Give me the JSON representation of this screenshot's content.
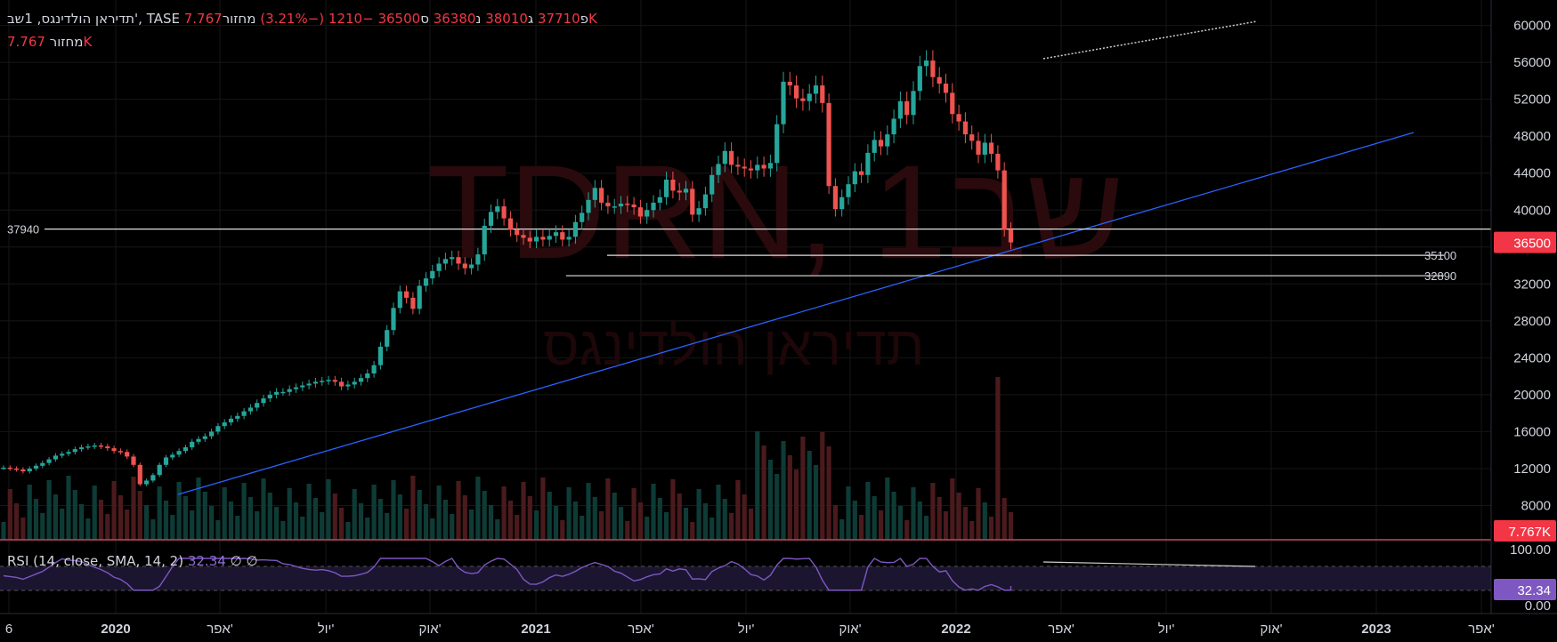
{
  "header": {
    "symbol": "תדיראן הולדינגס, 1שב', TASE",
    "open_label": "פ",
    "open": "37710",
    "high_label": "ג",
    "high": "38010",
    "low_label": "נ",
    "low": "36380",
    "close_label": "ס",
    "close": "36500",
    "change": "−1210 (−3.21%)",
    "volume_label": "מחזור",
    "volume": "7.767K"
  },
  "volume_row": {
    "label": "מחזור",
    "value": "7.767K"
  },
  "watermark": {
    "ticker": "TDRN, 1שב",
    "name": "תדיראן הולדינגס"
  },
  "price_tags": {
    "last": "36500",
    "volume": "7.767K",
    "rsi": "32.34"
  },
  "horizontal_levels": [
    {
      "label": "37940"
    },
    {
      "label": "35100"
    },
    {
      "label": "32890"
    }
  ],
  "rsi": {
    "title": "RSI (14, close, SMA, 14, 2)",
    "value": "32.34",
    "extra1": "∅",
    "extra2": "∅"
  },
  "colors": {
    "up": "#26a69a",
    "down": "#ef5350",
    "trendline": "#2962ff",
    "rsi": "#7e57c2",
    "bg": "#000000"
  },
  "chart_data": {
    "type": "candlestick",
    "y_axis_ticks": [
      "60000",
      "56000",
      "52000",
      "48000",
      "44000",
      "40000",
      "36000",
      "32000",
      "28000",
      "24000",
      "20000",
      "16000",
      "12000",
      "8000"
    ],
    "ylim": [
      4000,
      61600
    ],
    "rsi_axis_ticks": [
      "100.00",
      "0.00"
    ],
    "x_axis_ticks": [
      "6",
      "2020",
      "אפר'",
      "יול'",
      "אוק'",
      "2021",
      "אפר'",
      "יול'",
      "אוק'",
      "2022",
      "אפר'",
      "יול'",
      "אוק'",
      "2023",
      "אפר'"
    ],
    "levels": [
      37940,
      35100,
      32890
    ],
    "trendline": [
      {
        "x": "2020-03-23",
        "y": 9200
      },
      {
        "x": "2022-12-26",
        "y": 48400
      }
    ],
    "close_series": [
      12100,
      12000,
      11900,
      11700,
      12000,
      12300,
      12600,
      13000,
      13400,
      13600,
      13800,
      14100,
      14300,
      14400,
      14500,
      14400,
      14200,
      13900,
      13800,
      13300,
      12400,
      10300,
      10700,
      11300,
      12400,
      13200,
      13500,
      13900,
      14300,
      14900,
      15200,
      15500,
      16000,
      16600,
      17000,
      17400,
      17700,
      18200,
      18600,
      19100,
      19600,
      20000,
      20300,
      20300,
      20600,
      20800,
      21000,
      21200,
      21400,
      21500,
      21600,
      21400,
      20900,
      21100,
      21400,
      21800,
      22300,
      23200,
      25200,
      27000,
      29400,
      31200,
      30500,
      29300,
      31800,
      32600,
      33400,
      34200,
      34700,
      34900,
      34200,
      33700,
      34100,
      35200,
      38300,
      39800,
      40400,
      39100,
      37900,
      37300,
      37000,
      36600,
      37100,
      36800,
      37200,
      37600,
      36800,
      37100,
      38700,
      39700,
      41100,
      42400,
      40800,
      40400,
      40400,
      40700,
      40600,
      40300,
      39300,
      40000,
      40800,
      41400,
      43300,
      42100,
      41900,
      42300,
      39500,
      40200,
      41700,
      43800,
      45000,
      46400,
      44900,
      44700,
      44500,
      44300,
      44900,
      44500,
      45100,
      49300,
      53900,
      53500,
      52100,
      51800,
      52600,
      53500,
      51600,
      42600,
      40100,
      41400,
      42800,
      44200,
      43800,
      46200,
      47600,
      46900,
      48200,
      49900,
      51800,
      50300,
      52900,
      55600,
      56200,
      54400,
      53700,
      52700,
      50400,
      49600,
      48200,
      47500,
      46000,
      47300,
      46100,
      44300,
      37900,
      36500
    ],
    "volume_last": "7.767K",
    "rsi_last": 32.34
  }
}
